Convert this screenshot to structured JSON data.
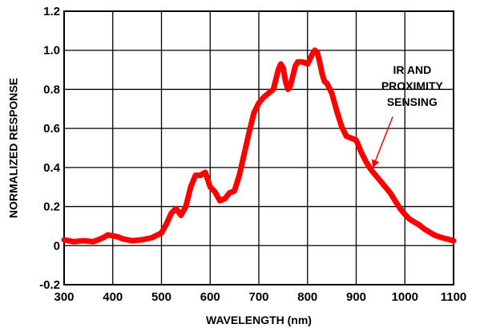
{
  "chart_data": {
    "type": "line",
    "title": "",
    "xlabel": "WAVELENGTH (nm)",
    "ylabel": "NORMALIZED RESPONSE",
    "xlim": [
      300,
      1100
    ],
    "ylim": [
      -0.2,
      1.2
    ],
    "grid": true,
    "x_ticks": [
      300,
      400,
      500,
      600,
      700,
      800,
      900,
      1000,
      1100
    ],
    "x_tick_labels": [
      "300",
      "400",
      "500",
      "600",
      "700",
      "800",
      "900",
      "1000",
      "1100"
    ],
    "y_ticks": [
      -0.2,
      0,
      0.2,
      0.4,
      0.6,
      0.8,
      1.0,
      1.2
    ],
    "y_tick_labels": [
      "-0.2",
      "0",
      "0.2",
      "0.4",
      "0.6",
      "0.8",
      "1.0",
      "1.2"
    ],
    "series": [
      {
        "color": "#ff0000",
        "x": [
          300,
          320,
          340,
          360,
          370,
          380,
          390,
          400,
          410,
          420,
          440,
          460,
          480,
          500,
          510,
          520,
          530,
          540,
          550,
          560,
          570,
          580,
          590,
          600,
          610,
          620,
          630,
          640,
          650,
          660,
          670,
          680,
          690,
          700,
          710,
          720,
          730,
          740,
          745,
          750,
          755,
          760,
          765,
          770,
          775,
          780,
          790,
          800,
          810,
          815,
          820,
          825,
          830,
          835,
          840,
          850,
          860,
          870,
          880,
          890,
          900,
          910,
          920,
          930,
          940,
          950,
          960,
          970,
          980,
          990,
          1000,
          1010,
          1020,
          1030,
          1040,
          1050,
          1060,
          1070,
          1080,
          1090,
          1100
        ],
        "y": [
          0.03,
          0.02,
          0.025,
          0.02,
          0.03,
          0.04,
          0.055,
          0.05,
          0.045,
          0.035,
          0.025,
          0.03,
          0.04,
          0.065,
          0.11,
          0.165,
          0.19,
          0.155,
          0.2,
          0.3,
          0.36,
          0.36,
          0.375,
          0.3,
          0.275,
          0.23,
          0.24,
          0.27,
          0.28,
          0.36,
          0.47,
          0.58,
          0.68,
          0.73,
          0.76,
          0.78,
          0.8,
          0.9,
          0.93,
          0.91,
          0.84,
          0.8,
          0.82,
          0.87,
          0.92,
          0.94,
          0.94,
          0.93,
          0.98,
          1.0,
          0.99,
          0.94,
          0.88,
          0.84,
          0.83,
          0.78,
          0.69,
          0.61,
          0.56,
          0.55,
          0.54,
          0.48,
          0.43,
          0.39,
          0.36,
          0.33,
          0.3,
          0.27,
          0.23,
          0.19,
          0.16,
          0.135,
          0.12,
          0.105,
          0.085,
          0.07,
          0.055,
          0.045,
          0.038,
          0.032,
          0.025
        ]
      }
    ],
    "annotations": [
      {
        "lines": [
          "IR AND",
          "PROXIMITY",
          "SENSING"
        ],
        "arrow_to": {
          "x": 935,
          "y": 0.405
        },
        "arrow_from": {
          "x": 975,
          "y": 0.66
        },
        "color": "#ff0000"
      }
    ]
  }
}
